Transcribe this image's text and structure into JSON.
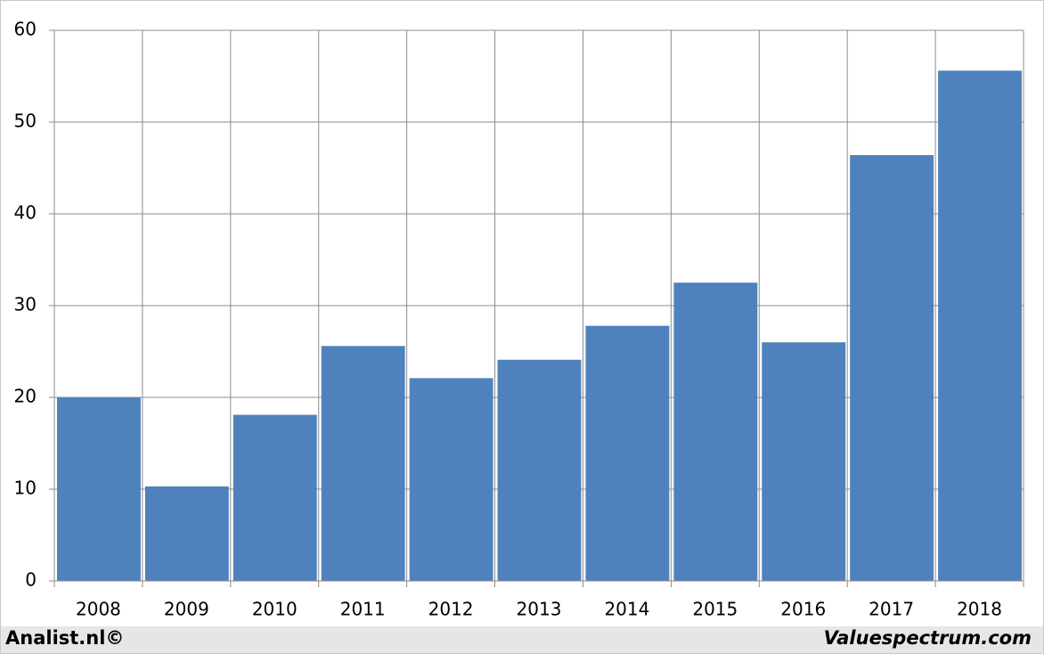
{
  "chart_data": {
    "type": "bar",
    "categories": [
      "2008",
      "2009",
      "2010",
      "2011",
      "2012",
      "2013",
      "2014",
      "2015",
      "2016",
      "2017",
      "2018"
    ],
    "values": [
      20.0,
      10.3,
      18.1,
      25.6,
      22.1,
      24.1,
      27.8,
      32.5,
      26.0,
      46.4,
      55.6
    ],
    "color": "#4f81bd",
    "ylim": [
      0,
      60
    ],
    "yticks": [
      0,
      10,
      20,
      30,
      40,
      50,
      60
    ],
    "grid": true,
    "footer_left": "Analist.nl©",
    "footer_right": "Valuespectrum.com"
  }
}
